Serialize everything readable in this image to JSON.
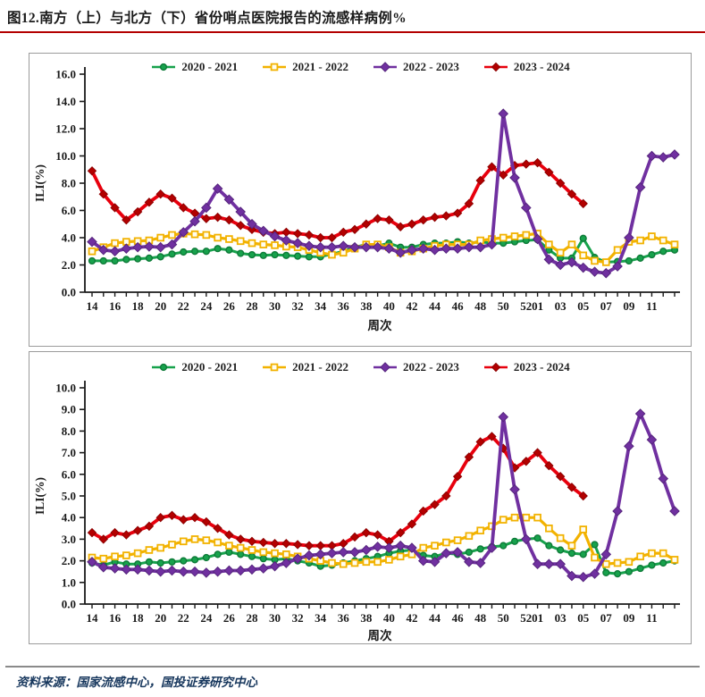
{
  "title": "图12.南方（上）与北方（下）省份哨点医院报告的流感样病例%",
  "footer": {
    "source_text": "资料来源：国家流感中心，国投证券研究中心"
  },
  "colors": {
    "title_underline": "#b30000",
    "axis": "#1a1a1a",
    "panel_border": "#9b9b9b",
    "footer_text": "#17375d",
    "green": "#17a24c",
    "green_dark": "#0e7a38",
    "yellow": "#f2b200",
    "yellow_fill": "#fffdf0",
    "purple": "#7030a0",
    "purple_dark": "#56257d",
    "red": "#e8000d",
    "red_dark": "#b30000"
  },
  "weeks": [
    "14",
    "15",
    "16",
    "17",
    "18",
    "19",
    "20",
    "21",
    "22",
    "23",
    "24",
    "25",
    "26",
    "27",
    "28",
    "29",
    "30",
    "31",
    "32",
    "33",
    "34",
    "35",
    "36",
    "37",
    "38",
    "39",
    "40",
    "41",
    "42",
    "43",
    "44",
    "45",
    "46",
    "47",
    "48",
    "49",
    "50",
    "51",
    "52",
    "01",
    "02",
    "03",
    "04",
    "05",
    "06",
    "07",
    "08",
    "09",
    "10",
    "11",
    "12",
    "13"
  ],
  "x_tick_labels": [
    "14",
    "16",
    "18",
    "20",
    "22",
    "24",
    "26",
    "28",
    "30",
    "32",
    "34",
    "36",
    "38",
    "40",
    "42",
    "44",
    "46",
    "48",
    "50",
    "52",
    "01",
    "03",
    "05",
    "07",
    "09",
    "11"
  ],
  "chart_data": [
    {
      "type": "line",
      "title": "南方（上）省份哨点医院报告的流感样病例%",
      "xlabel": "周次",
      "ylabel": "ILI(%)",
      "ylim": [
        0,
        16
      ],
      "y_step": 2,
      "y_tick_labels": [
        "0.0",
        "2.0",
        "4.0",
        "6.0",
        "8.0",
        "10.0",
        "12.0",
        "14.0",
        "16.0"
      ],
      "legend_position": "top-center",
      "grid": false,
      "series": [
        {
          "name": "2020 - 2021",
          "color_key": "green",
          "marker": "circle",
          "values": [
            2.3,
            2.3,
            2.3,
            2.4,
            2.45,
            2.5,
            2.6,
            2.8,
            2.95,
            3.0,
            3.0,
            3.2,
            3.1,
            2.85,
            2.75,
            2.7,
            2.75,
            2.7,
            2.65,
            2.6,
            2.6,
            2.8,
            3.0,
            3.3,
            3.5,
            3.4,
            3.6,
            3.3,
            3.3,
            3.5,
            3.6,
            3.6,
            3.7,
            3.6,
            3.7,
            3.6,
            3.6,
            3.7,
            3.8,
            3.85,
            3.1,
            2.5,
            2.5,
            3.95,
            2.55,
            2.2,
            2.25,
            2.3,
            2.5,
            2.75,
            3.0,
            3.1
          ]
        },
        {
          "name": "2021 - 2022",
          "color_key": "yellow",
          "marker": "square",
          "values": [
            3.0,
            3.3,
            3.6,
            3.7,
            3.75,
            3.8,
            4.0,
            4.2,
            4.3,
            4.25,
            4.2,
            4.0,
            3.9,
            3.75,
            3.6,
            3.5,
            3.45,
            3.35,
            3.3,
            3.1,
            2.9,
            2.75,
            2.9,
            3.2,
            3.5,
            3.5,
            3.3,
            2.9,
            3.0,
            3.2,
            3.4,
            3.5,
            3.5,
            3.5,
            3.8,
            3.9,
            4.0,
            4.1,
            4.2,
            4.3,
            3.5,
            2.9,
            3.5,
            2.7,
            2.3,
            2.2,
            3.1,
            3.7,
            3.8,
            4.1,
            3.8,
            3.5
          ]
        },
        {
          "name": "2022 - 2023",
          "color_key": "purple",
          "marker": "diamond",
          "values": [
            3.7,
            3.1,
            3.0,
            3.2,
            3.3,
            3.35,
            3.3,
            3.5,
            4.4,
            5.2,
            6.2,
            7.6,
            6.8,
            5.9,
            5.0,
            4.5,
            4.1,
            3.8,
            3.6,
            3.4,
            3.3,
            3.3,
            3.4,
            3.3,
            3.3,
            3.3,
            3.2,
            2.9,
            3.1,
            3.2,
            3.1,
            3.2,
            3.2,
            3.3,
            3.3,
            3.5,
            13.1,
            8.4,
            6.2,
            3.9,
            2.4,
            2.0,
            2.2,
            1.8,
            1.5,
            1.4,
            1.9,
            4.0,
            7.7,
            10.0,
            9.9,
            10.1
          ]
        },
        {
          "name": "2023 - 2024",
          "color_key": "red",
          "marker": "diamond",
          "values": [
            8.9,
            7.2,
            6.2,
            5.3,
            5.9,
            6.6,
            7.2,
            6.9,
            6.2,
            5.8,
            5.4,
            5.5,
            5.3,
            4.9,
            4.6,
            4.4,
            4.3,
            4.4,
            4.3,
            4.2,
            4.0,
            4.0,
            4.4,
            4.6,
            5.0,
            5.4,
            5.3,
            4.8,
            5.0,
            5.3,
            5.5,
            5.6,
            5.8,
            6.5,
            8.2,
            9.2,
            8.6,
            9.3,
            9.4,
            9.5,
            8.8,
            8.0,
            7.2,
            6.5,
            null,
            null,
            null,
            null,
            null,
            null,
            null,
            null
          ]
        }
      ]
    },
    {
      "type": "line",
      "title": "北方（下）省份哨点医院报告的流感样病例%",
      "xlabel": "周次",
      "ylabel": "ILI(%)",
      "ylim": [
        0,
        10
      ],
      "y_step": 1,
      "y_tick_labels": [
        "0.0",
        "1.0",
        "2.0",
        "3.0",
        "4.0",
        "5.0",
        "6.0",
        "7.0",
        "8.0",
        "9.0",
        "10.0"
      ],
      "legend_position": "top-center",
      "grid": false,
      "series": [
        {
          "name": "2020 - 2021",
          "color_key": "green",
          "marker": "circle",
          "values": [
            1.9,
            1.8,
            1.95,
            1.85,
            1.85,
            1.95,
            1.9,
            1.95,
            2.0,
            2.05,
            2.15,
            2.3,
            2.4,
            2.3,
            2.2,
            2.1,
            2.05,
            2.1,
            2.0,
            1.9,
            1.75,
            1.8,
            1.9,
            2.0,
            2.1,
            2.2,
            2.35,
            2.45,
            2.5,
            2.25,
            2.2,
            2.35,
            2.3,
            2.4,
            2.55,
            2.65,
            2.7,
            2.9,
            3.0,
            3.05,
            2.7,
            2.5,
            2.35,
            2.3,
            2.75,
            1.45,
            1.4,
            1.5,
            1.65,
            1.8,
            1.9,
            2.0
          ]
        },
        {
          "name": "2021 - 2022",
          "color_key": "yellow",
          "marker": "square",
          "values": [
            2.15,
            2.1,
            2.2,
            2.25,
            2.35,
            2.5,
            2.6,
            2.75,
            2.9,
            3.0,
            2.95,
            2.85,
            2.7,
            2.6,
            2.5,
            2.4,
            2.35,
            2.3,
            2.2,
            2.1,
            2.0,
            1.9,
            1.85,
            1.9,
            1.95,
            1.95,
            2.05,
            2.2,
            2.3,
            2.6,
            2.7,
            2.85,
            2.95,
            3.15,
            3.4,
            3.6,
            3.9,
            4.0,
            4.0,
            4.0,
            3.5,
            3.05,
            2.7,
            3.45,
            2.15,
            1.85,
            1.9,
            1.95,
            2.2,
            2.35,
            2.35,
            2.05
          ]
        },
        {
          "name": "2022 - 2023",
          "color_key": "purple",
          "marker": "diamond",
          "values": [
            1.95,
            1.7,
            1.65,
            1.6,
            1.6,
            1.55,
            1.5,
            1.55,
            1.5,
            1.5,
            1.45,
            1.5,
            1.55,
            1.55,
            1.6,
            1.65,
            1.75,
            1.9,
            2.1,
            2.25,
            2.3,
            2.35,
            2.4,
            2.4,
            2.5,
            2.65,
            2.6,
            2.7,
            2.6,
            2.0,
            1.95,
            2.35,
            2.4,
            1.95,
            1.9,
            2.6,
            8.65,
            5.3,
            3.0,
            1.85,
            1.85,
            1.85,
            1.3,
            1.25,
            1.4,
            2.3,
            4.3,
            7.3,
            8.8,
            7.6,
            5.8,
            4.3
          ]
        },
        {
          "name": "2023 - 2024",
          "color_key": "red",
          "marker": "diamond",
          "values": [
            3.3,
            3.0,
            3.3,
            3.2,
            3.4,
            3.6,
            4.0,
            4.1,
            3.9,
            4.0,
            3.8,
            3.5,
            3.2,
            3.0,
            2.9,
            2.85,
            2.8,
            2.8,
            2.75,
            2.7,
            2.7,
            2.7,
            2.8,
            3.1,
            3.3,
            3.2,
            2.9,
            3.3,
            3.7,
            4.3,
            4.6,
            5.0,
            5.9,
            6.8,
            7.5,
            7.75,
            7.2,
            6.3,
            6.6,
            7.0,
            6.4,
            5.9,
            5.4,
            5.0,
            null,
            null,
            null,
            null,
            null,
            null,
            null,
            null
          ]
        }
      ]
    }
  ]
}
